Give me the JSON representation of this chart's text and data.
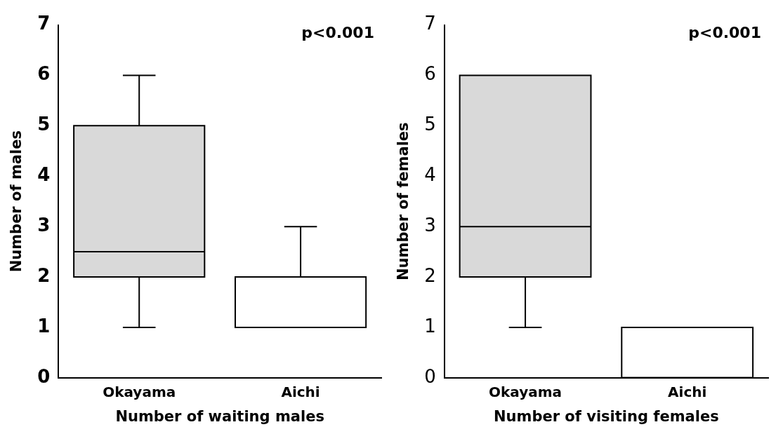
{
  "chart_data": [
    {
      "type": "box",
      "categories": [
        "Okayama",
        "Aichi"
      ],
      "xlabel": "Number of waiting males",
      "ylabel": "Number of males",
      "ylim": [
        0,
        7
      ],
      "yticks": [
        0,
        1,
        2,
        3,
        4,
        5,
        6,
        7
      ],
      "grid": false,
      "legend": false,
      "annotations": [
        "p<0.001"
      ],
      "series": [
        {
          "colors": [
            "#d9d9d9",
            "#ffffff"
          ],
          "boxes": [
            {
              "low": 1,
              "q1": 2,
              "median": 2.5,
              "q3": 5,
              "high": 6
            },
            {
              "low": 1,
              "q1": 1,
              "median": 1,
              "q3": 2,
              "high": 3
            }
          ]
        }
      ]
    },
    {
      "type": "box",
      "categories": [
        "Okayama",
        "Aichi"
      ],
      "xlabel": "Number of visiting females",
      "ylabel": "Number of females",
      "ylim": [
        0,
        7
      ],
      "yticks": [
        0,
        1,
        2,
        3,
        4,
        5,
        6,
        7
      ],
      "grid": false,
      "legend": false,
      "annotations": [
        "p<0.001"
      ],
      "series": [
        {
          "colors": [
            "#d9d9d9",
            "#ffffff"
          ],
          "boxes": [
            {
              "low": 1,
              "q1": 2,
              "median": 3,
              "q3": 6,
              "high": 6
            },
            {
              "low": 0,
              "q1": 0,
              "median": 0,
              "q3": 1,
              "high": 1
            }
          ]
        }
      ]
    }
  ]
}
